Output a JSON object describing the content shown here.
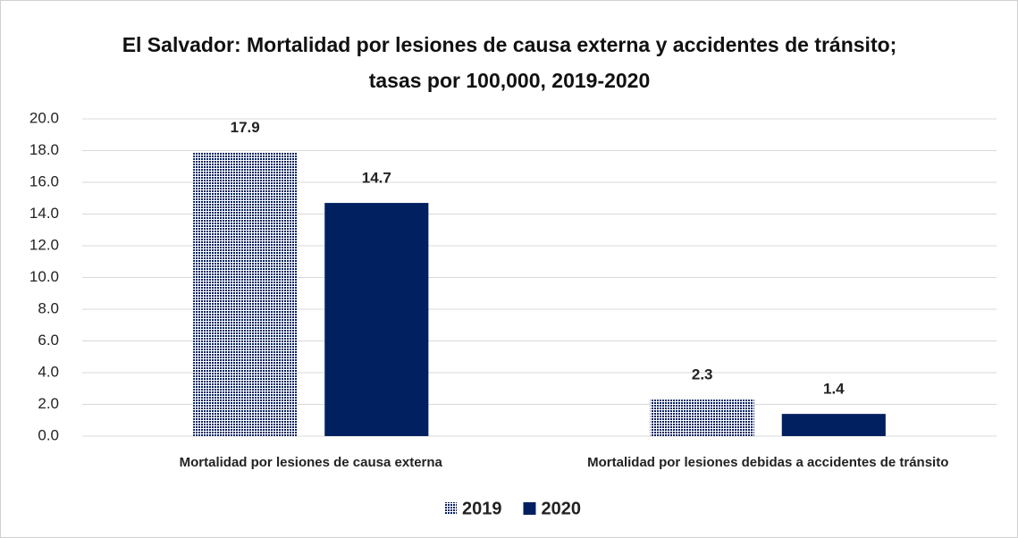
{
  "chart_data": {
    "type": "bar",
    "title": "El Salvador: Mortalidad por lesiones de causa externa y accidentes de tránsito; tasas por 100,000, 2019-2020",
    "categories": [
      "Mortalidad por lesiones de causa externa",
      "Mortalidad por lesiones debidas a accidentes de tránsito"
    ],
    "series": [
      {
        "name": "2019",
        "color": "#002060",
        "pattern": "dots",
        "values": [
          17.9,
          2.3
        ]
      },
      {
        "name": "2020",
        "color": "#002060",
        "values": [
          14.7,
          1.4
        ]
      }
    ],
    "ylim": [
      0,
      20
    ],
    "yticks": [
      {
        "value": 0,
        "label": "0.0"
      },
      {
        "value": 2,
        "label": "2.0"
      },
      {
        "value": 4,
        "label": "4.0"
      },
      {
        "value": 6,
        "label": "6.0"
      },
      {
        "value": 8,
        "label": "8.0"
      },
      {
        "value": 10,
        "label": "10.0"
      },
      {
        "value": 12,
        "label": "12.0"
      },
      {
        "value": 14,
        "label": "14.0"
      },
      {
        "value": 16,
        "label": "16.0"
      },
      {
        "value": 18,
        "label": "18.0"
      },
      {
        "value": 20,
        "label": "20.0"
      }
    ],
    "grid": true,
    "legend": "bottom"
  }
}
